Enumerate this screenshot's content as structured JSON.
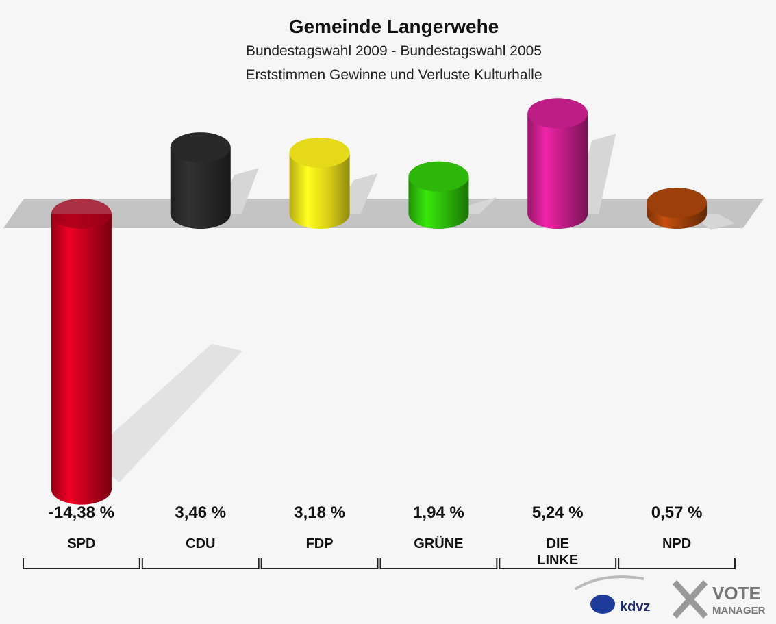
{
  "chart_data": {
    "type": "bar",
    "title": "Gemeinde Langerwehe",
    "subtitle": [
      "Bundestagswahl 2009 - Bundestagswahl 2005",
      "Erststimmen Gewinne und Verluste Kulturhalle"
    ],
    "categories": [
      "SPD",
      "CDU",
      "FDP",
      "GRÜNE",
      "DIE LINKE",
      "NPD"
    ],
    "values": [
      -14.38,
      3.46,
      3.18,
      1.94,
      5.24,
      0.57
    ],
    "value_labels": [
      "-14,38 %",
      "3,46 %",
      "3,18 %",
      "1,94 %",
      "5,24 %",
      "0,57 %"
    ],
    "colors": [
      "#c8001e",
      "#2a2a2a",
      "#f2e41a",
      "#2fc10a",
      "#c81e8c",
      "#a4420c"
    ]
  },
  "logo": {
    "kdvz": "kdvz",
    "vote": "VOTE",
    "manager": "MANAGER"
  }
}
